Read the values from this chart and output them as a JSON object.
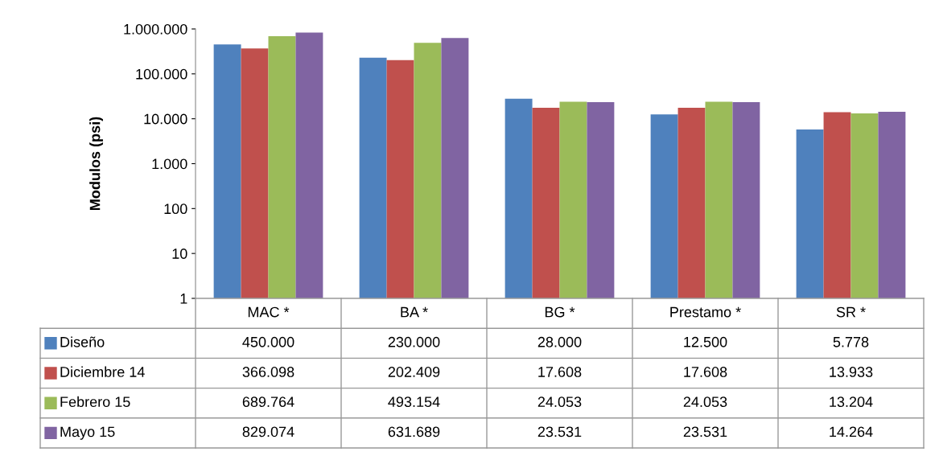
{
  "chart_data": {
    "type": "bar",
    "ylabel": "Modulos (psi)",
    "log": true,
    "categories": [
      "MAC *",
      "BA *",
      "BG *",
      "Prestamo *",
      "SR *"
    ],
    "series": [
      {
        "name": "Diseño",
        "color": "#4f81bd",
        "values": [
          450000,
          230000,
          28000,
          12500,
          5778
        ],
        "value_labels": [
          "450.000",
          "230.000",
          "28.000",
          "12.500",
          "5.778"
        ]
      },
      {
        "name": "Diciembre 14",
        "color": "#c0504d",
        "values": [
          366098,
          202409,
          17608,
          17608,
          13933
        ],
        "value_labels": [
          "366.098",
          "202.409",
          "17.608",
          "17.608",
          "13.933"
        ]
      },
      {
        "name": "Febrero 15",
        "color": "#9bbb59",
        "values": [
          689764,
          493154,
          24053,
          24053,
          13204
        ],
        "value_labels": [
          "689.764",
          "493.154",
          "24.053",
          "24.053",
          "13.204"
        ]
      },
      {
        "name": "Mayo 15",
        "color": "#8064a2",
        "values": [
          829074,
          631689,
          23531,
          23531,
          14264
        ],
        "value_labels": [
          "829.074",
          "631.689",
          "23.531",
          "23.531",
          "14.264"
        ]
      }
    ],
    "ylim": [
      1,
      1000000
    ],
    "yticks": [
      {
        "value": 1,
        "label": "1"
      },
      {
        "value": 10,
        "label": "10"
      },
      {
        "value": 100,
        "label": "100"
      },
      {
        "value": 1000,
        "label": "1.000"
      },
      {
        "value": 10000,
        "label": "10.000"
      },
      {
        "value": 100000,
        "label": "100.000"
      },
      {
        "value": 1000000,
        "label": "1.000.000"
      }
    ],
    "grid": false,
    "legend": "bottom"
  }
}
